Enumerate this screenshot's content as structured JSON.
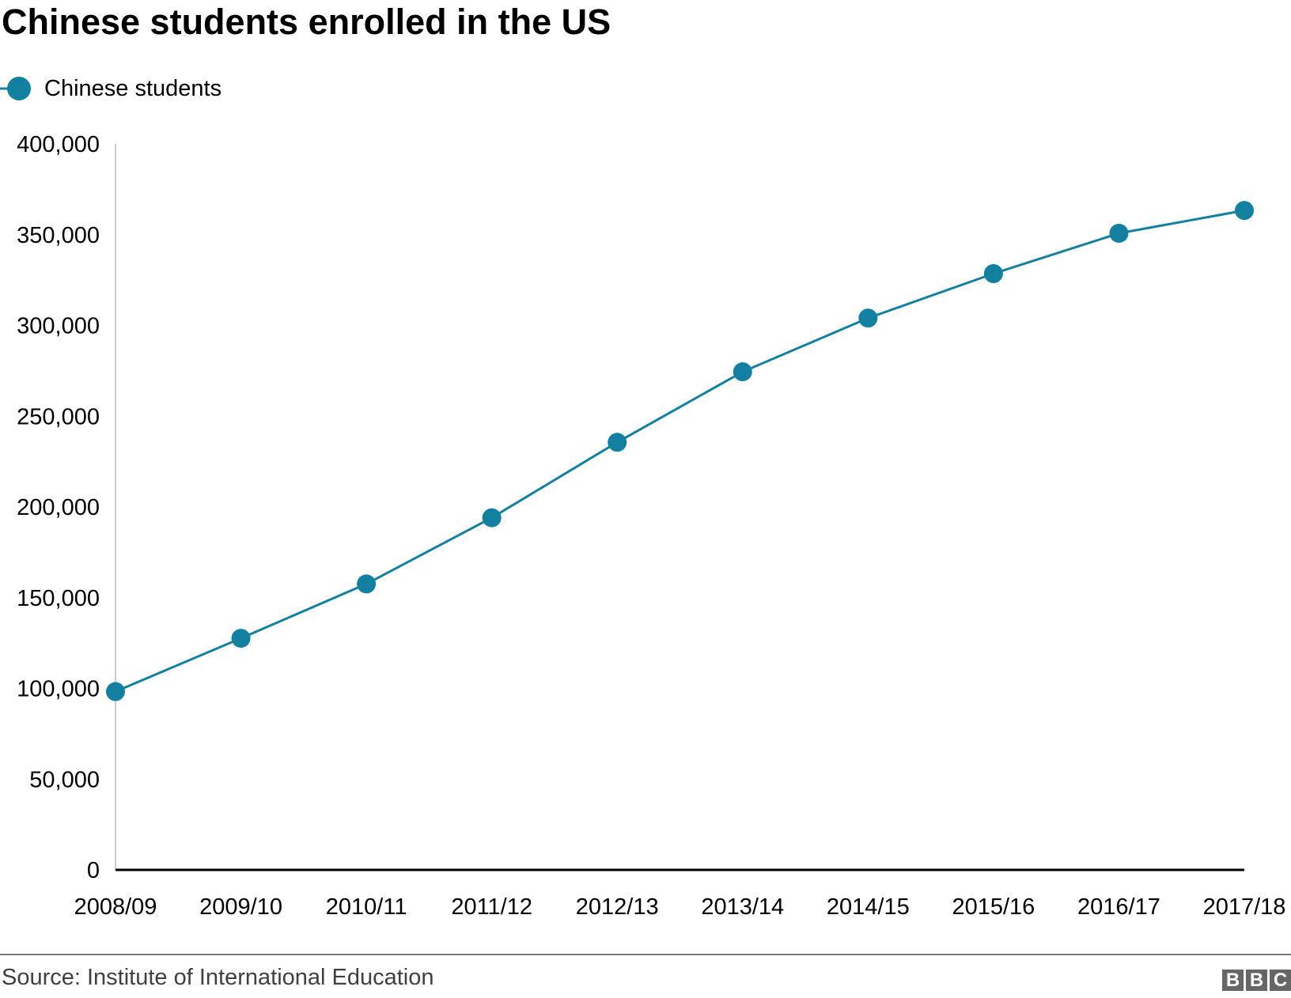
{
  "chart_data": {
    "type": "line",
    "title": "Chinese students enrolled in the US",
    "categories": [
      "2008/09",
      "2009/10",
      "2010/11",
      "2011/12",
      "2012/13",
      "2013/14",
      "2014/15",
      "2015/16",
      "2016/17",
      "2017/18"
    ],
    "series": [
      {
        "name": "Chinese students",
        "color": "#1380a1",
        "values": [
          98235,
          127628,
          157558,
          194029,
          235597,
          274439,
          304040,
          328547,
          350755,
          363341
        ]
      }
    ],
    "yticks": [
      0,
      50000,
      100000,
      150000,
      200000,
      250000,
      300000,
      350000,
      400000
    ],
    "ytick_labels": [
      "0",
      "50,000",
      "100,000",
      "150,000",
      "200,000",
      "250,000",
      "300,000",
      "350,000",
      "400,000"
    ],
    "ylim": [
      0,
      400000
    ],
    "xlabel": "",
    "ylabel": "",
    "grid": false,
    "legend": "top-left"
  },
  "footer": {
    "source": "Source: Institute of International Education",
    "logo": "BBC"
  }
}
